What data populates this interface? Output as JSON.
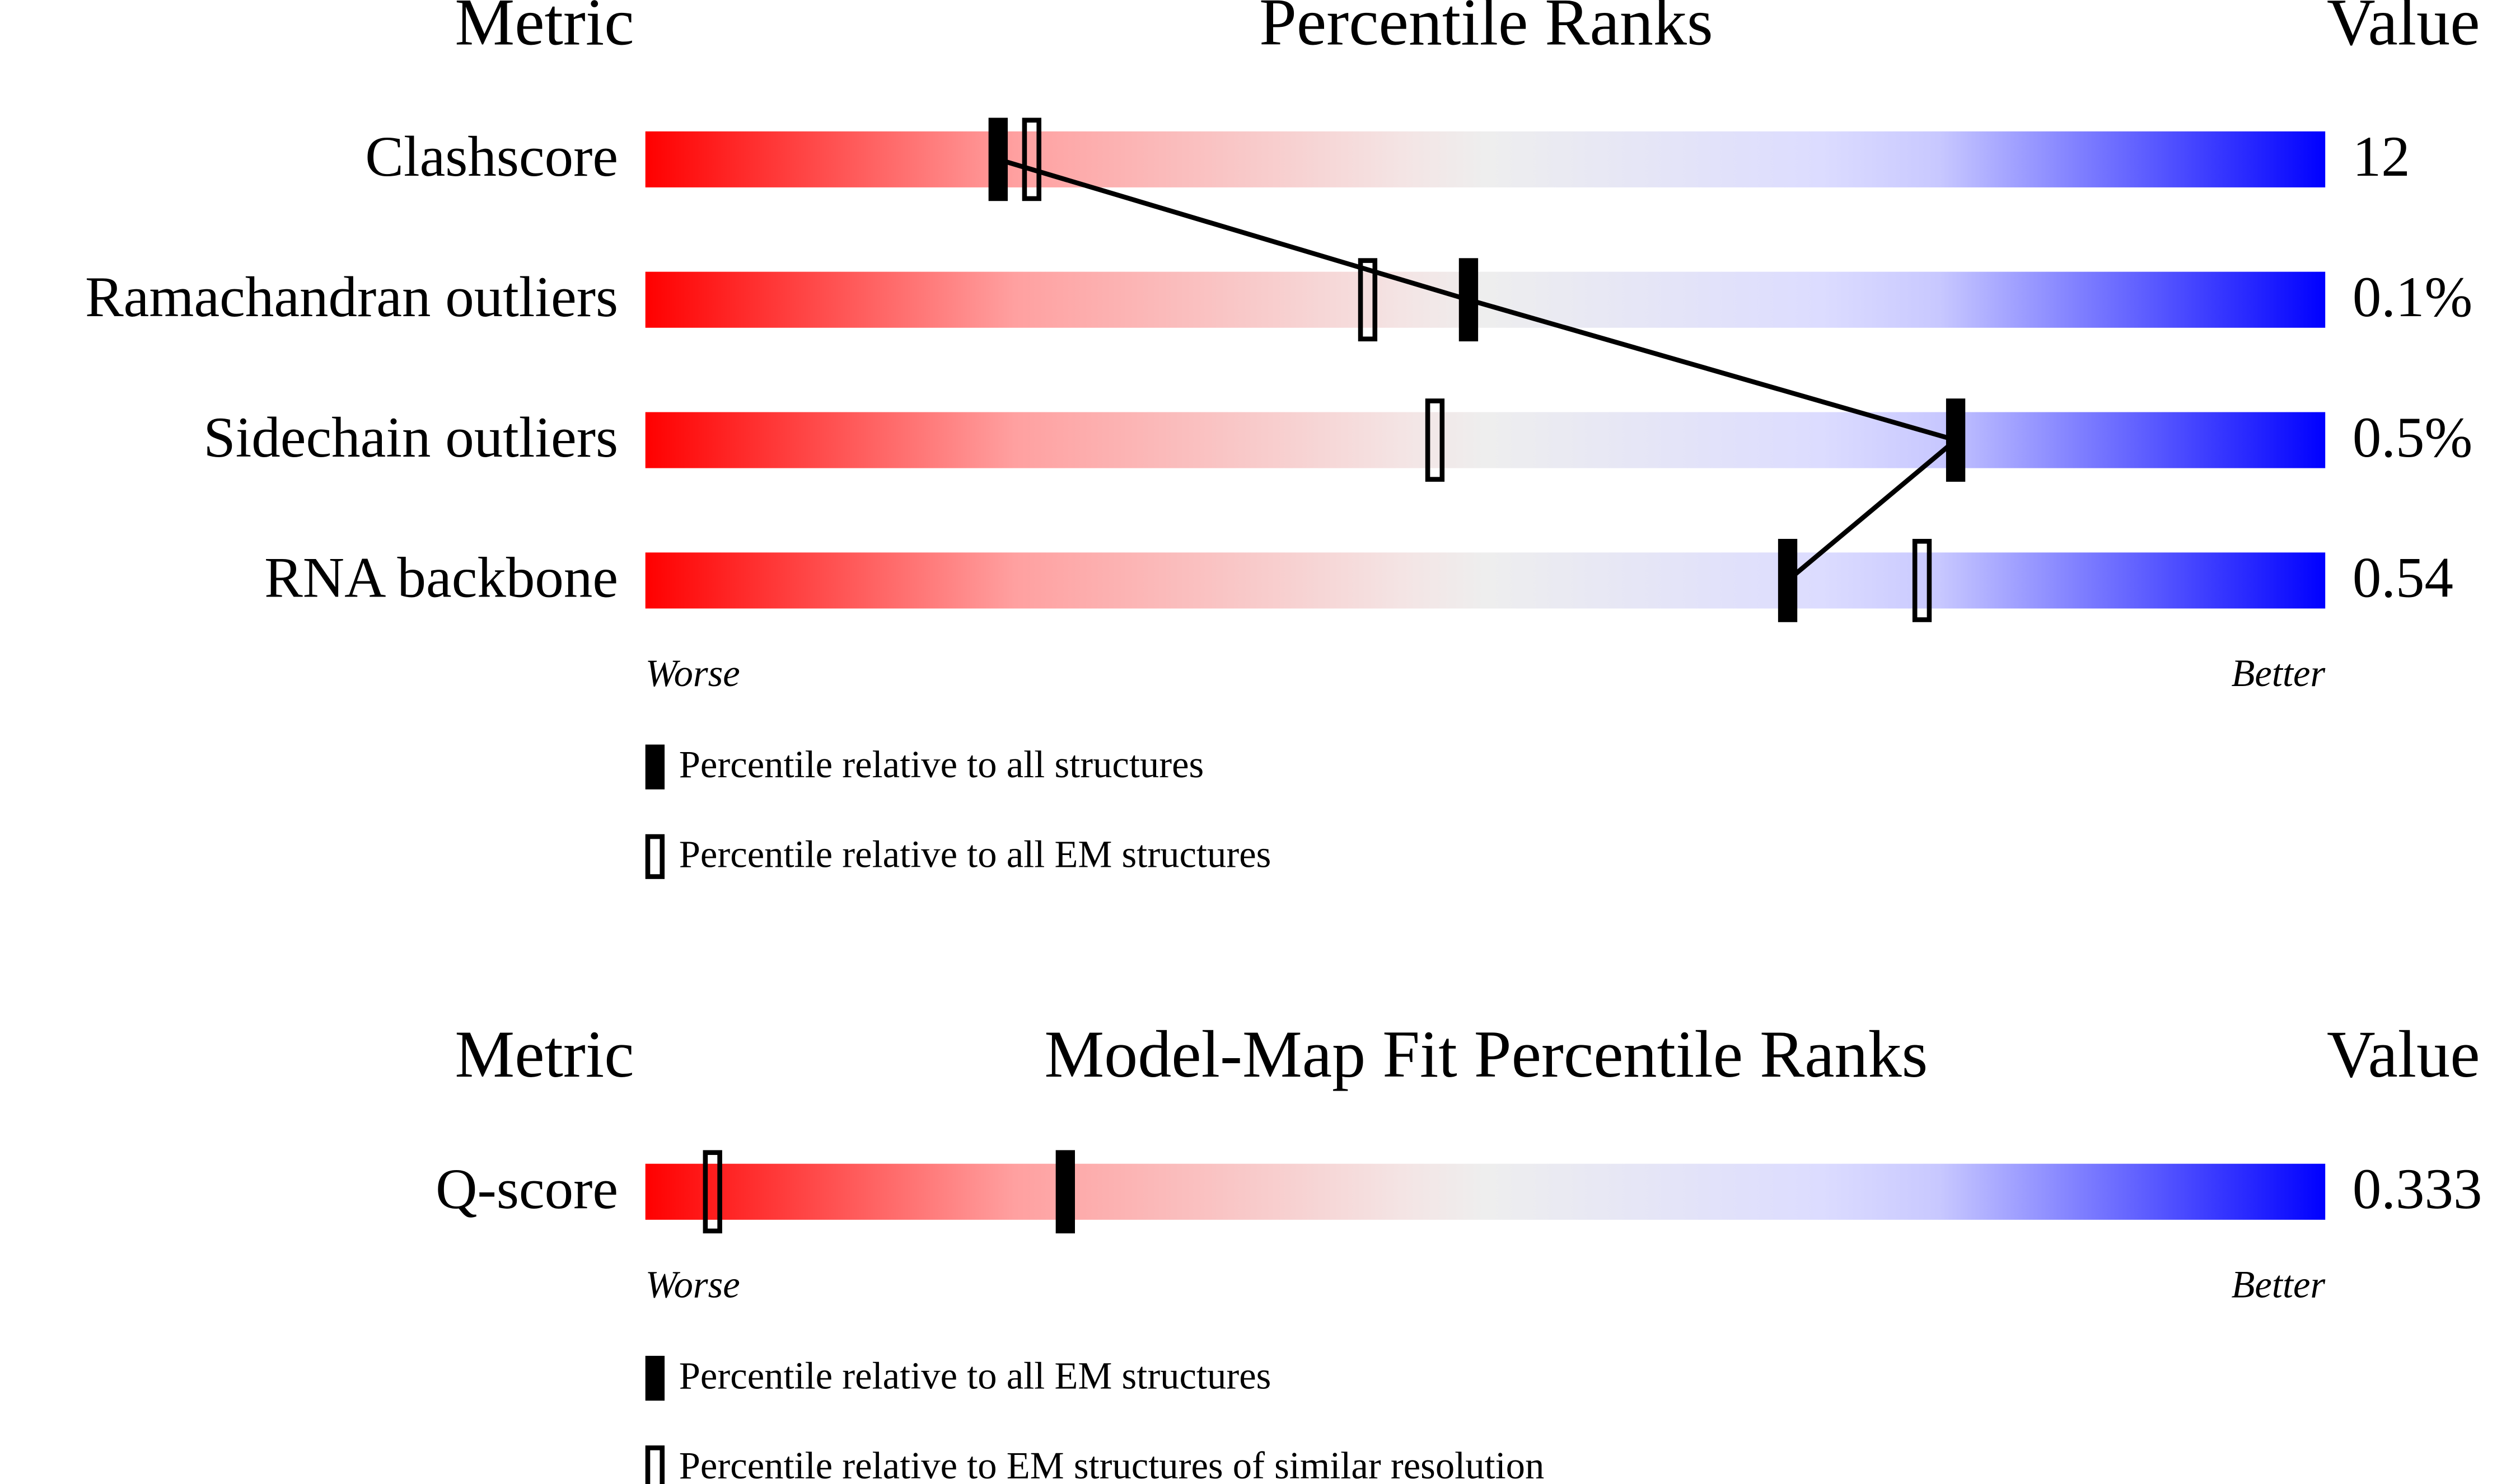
{
  "chart_data": [
    {
      "type": "percentile-slider",
      "metric_header": "Metric",
      "title": "Percentile Ranks",
      "value_header": "Value",
      "categories": [
        "Clashscore",
        "Ramachandran outliers",
        "Sidechain outliers",
        "RNA backbone"
      ],
      "metric_values": [
        "12",
        "0.1%",
        "0.5%",
        "0.54"
      ],
      "worse_label": "Worse",
      "better_label": "Better",
      "xlim": [
        0,
        100
      ],
      "connect": true,
      "series": [
        {
          "name": "Percentile relative to all structures",
          "style": "filled",
          "color": "#000000",
          "values": [
            21,
            49,
            78,
            68
          ]
        },
        {
          "name": "Percentile relative to all EM structures",
          "style": "hollow",
          "color": "#000000",
          "values": [
            23,
            43,
            47,
            76
          ]
        }
      ]
    },
    {
      "type": "percentile-slider",
      "metric_header": "Metric",
      "title": "Model-Map Fit Percentile Ranks",
      "value_header": "Value",
      "categories": [
        "Q-score"
      ],
      "metric_values": [
        "0.333"
      ],
      "worse_label": "Worse",
      "better_label": "Better",
      "xlim": [
        0,
        100
      ],
      "connect": true,
      "series": [
        {
          "name": "Percentile relative to all EM structures",
          "style": "filled",
          "color": "#000000",
          "values": [
            25
          ]
        },
        {
          "name": "Percentile relative to EM structures of similar resolution",
          "style": "hollow",
          "color": "#000000",
          "values": [
            4
          ]
        }
      ]
    }
  ]
}
